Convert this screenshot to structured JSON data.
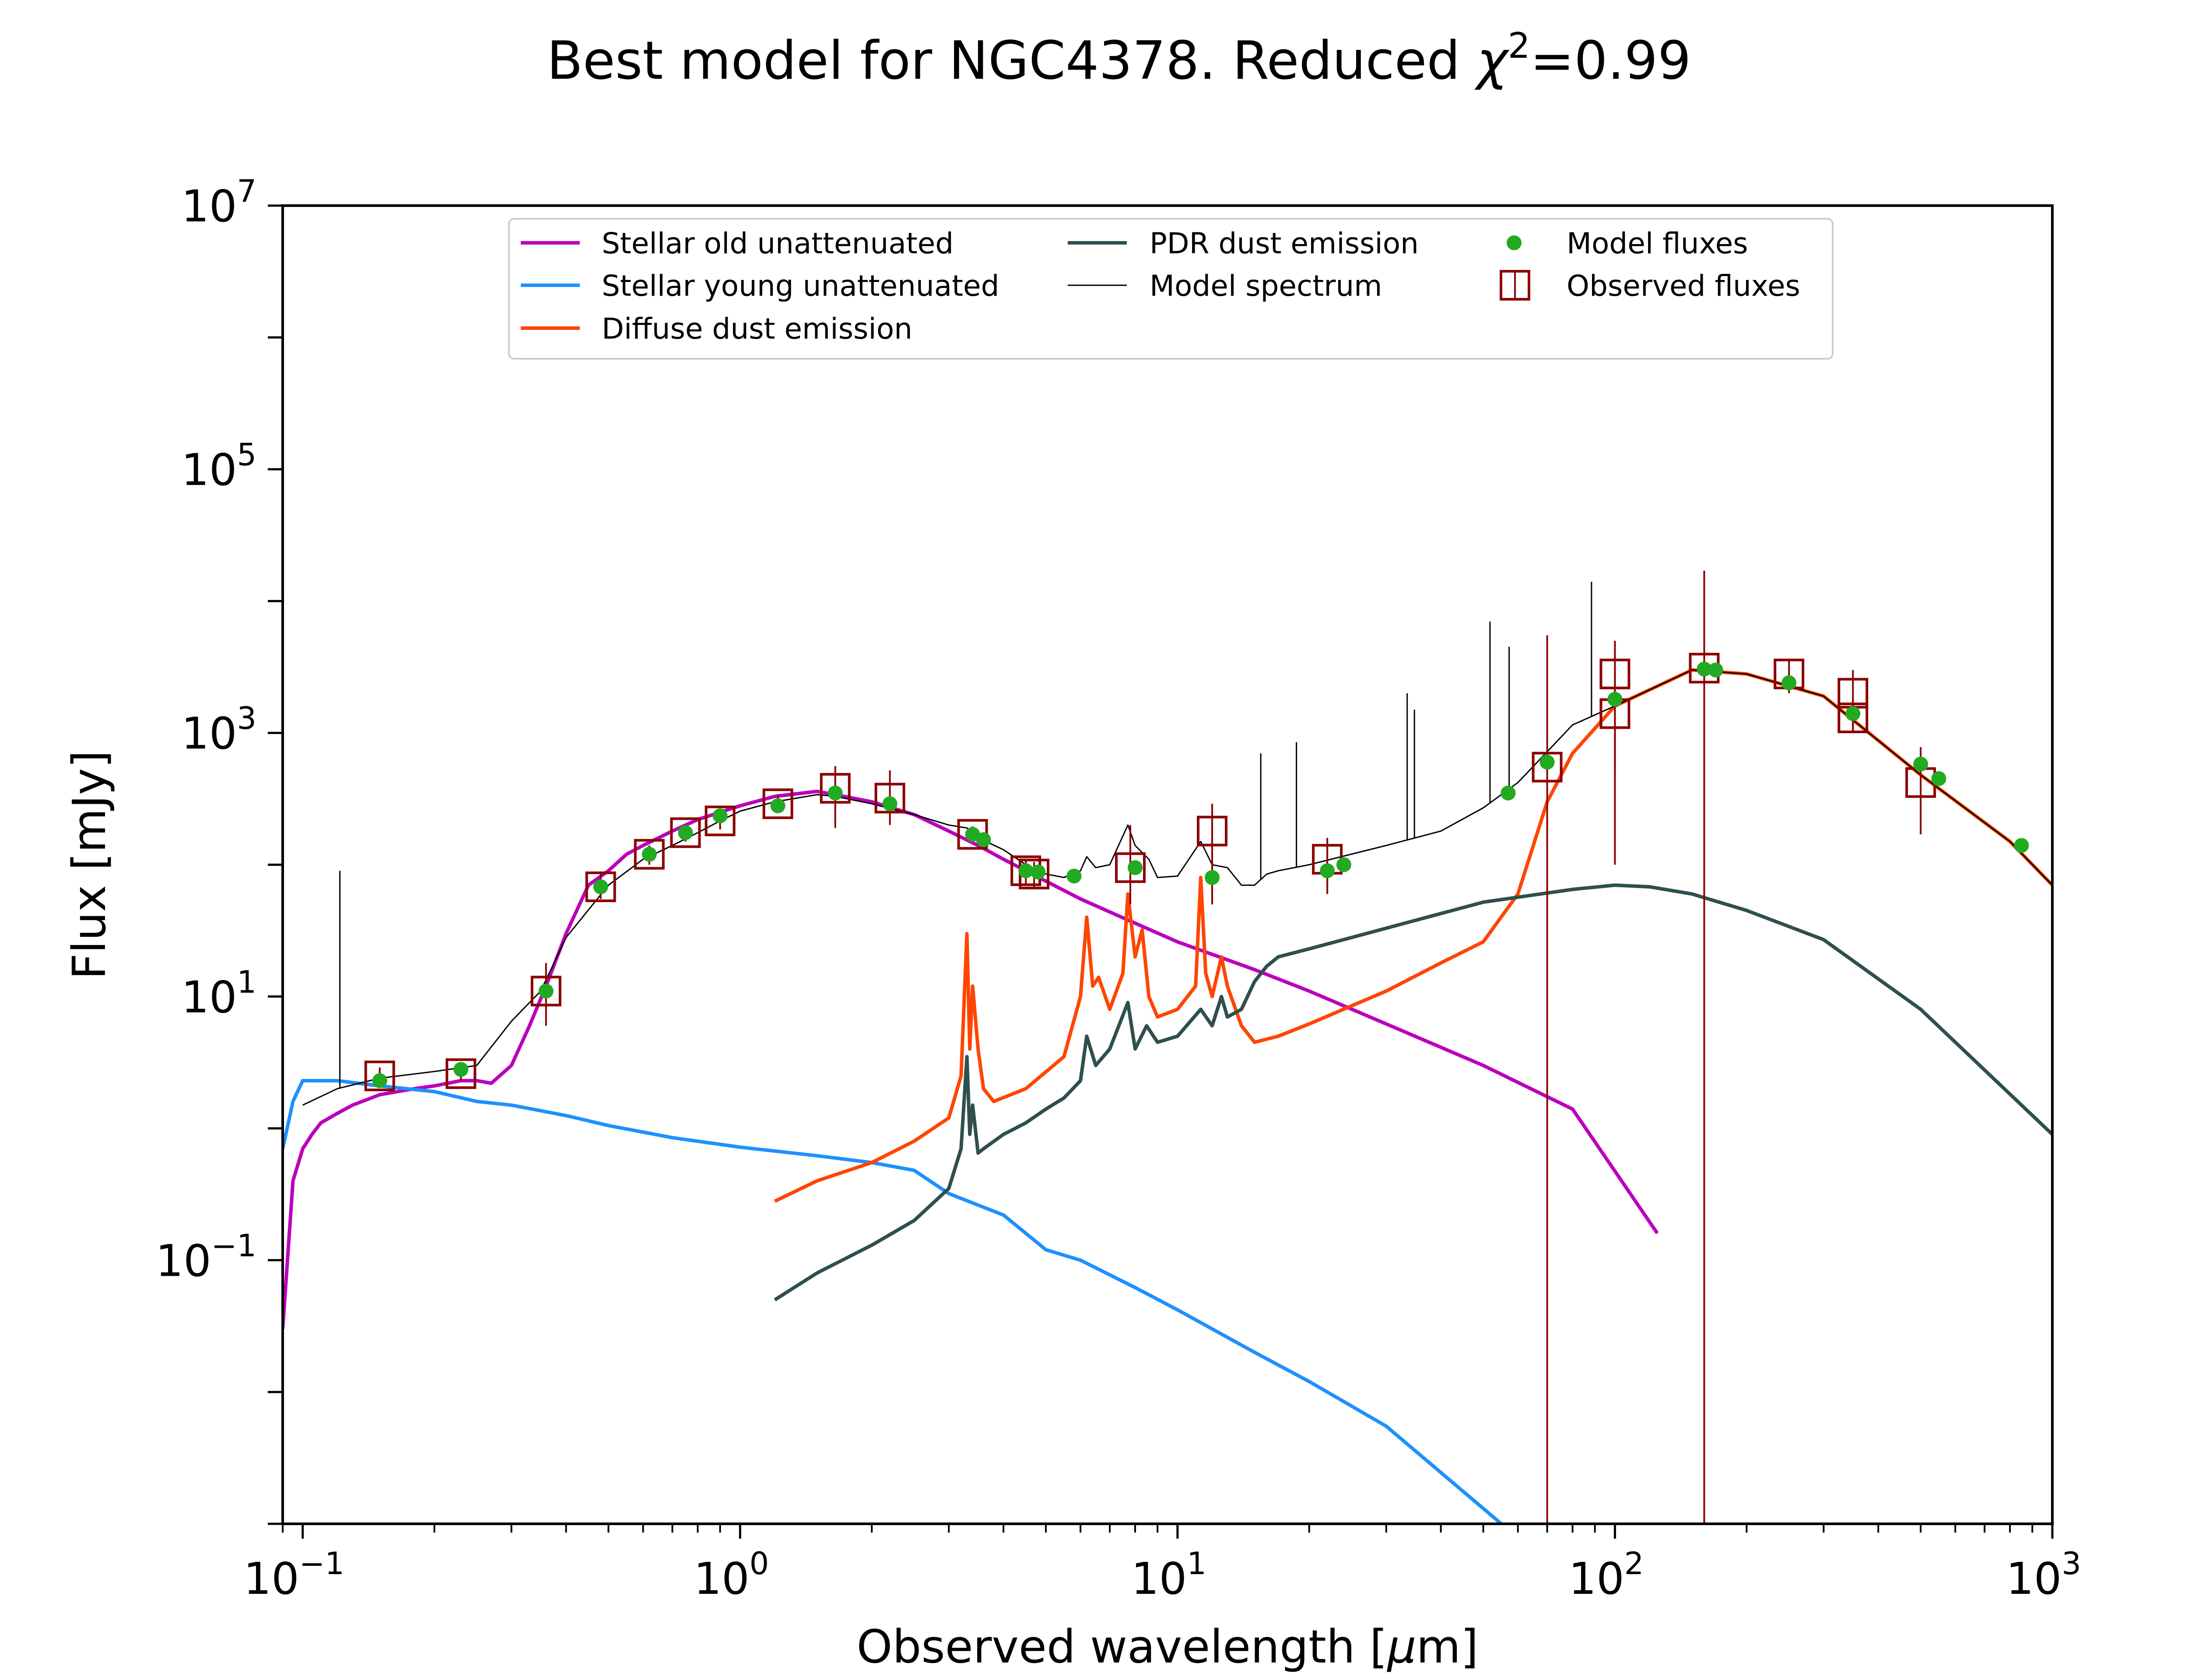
{
  "chart_data": {
    "type": "line",
    "title_main": "Best model for NGC4378. Reduced ",
    "title_chi": "χ",
    "title_exp": "2",
    "title_rest": "=0.99",
    "xlabel_main": "Observed wavelength [",
    "xlabel_mu": "μ",
    "xlabel_rest": "m]",
    "ylabel": "Flux [mJy]",
    "xscale": "log",
    "yscale": "log",
    "xlim": [
      0.09,
      1000
    ],
    "ylim": [
      0.001,
      10000000
    ],
    "x_ticks": [
      {
        "value": 0.1,
        "base": "10",
        "exp": "−1"
      },
      {
        "value": 1,
        "base": "10",
        "exp": "0"
      },
      {
        "value": 10,
        "base": "10",
        "exp": "1"
      },
      {
        "value": 100,
        "base": "10",
        "exp": "2"
      },
      {
        "value": 1000,
        "base": "10",
        "exp": "3"
      }
    ],
    "y_ticks": [
      {
        "value": 0.1,
        "base": "10",
        "exp": "−1"
      },
      {
        "value": 10,
        "base": "10",
        "exp": "1"
      },
      {
        "value": 1000,
        "base": "10",
        "exp": "3"
      },
      {
        "value": 100000,
        "base": "10",
        "exp": "5"
      },
      {
        "value": 10000000,
        "base": "10",
        "exp": "7"
      }
    ],
    "legend_position": "top-center",
    "legend": [
      {
        "label": "Stellar old unattenuated",
        "color": "#bb00bb",
        "kind": "line"
      },
      {
        "label": "Stellar young unattenuated",
        "color": "#1e90ff",
        "kind": "line"
      },
      {
        "label": "Diffuse dust emission",
        "color": "#ff4500",
        "kind": "line"
      },
      {
        "label": "PDR dust emission",
        "color": "#2f4f4f",
        "kind": "line"
      },
      {
        "label": "Model spectrum",
        "color": "#000000",
        "kind": "thin-line"
      },
      {
        "label": "Model fluxes",
        "color": "#22aa22",
        "kind": "dot"
      },
      {
        "label": "Observed fluxes",
        "color": "#8b0000",
        "kind": "square"
      }
    ],
    "series": [
      {
        "name": "Stellar old unattenuated",
        "color": "#bb00bb",
        "x": [
          0.09,
          0.095,
          0.1,
          0.105,
          0.11,
          0.12,
          0.13,
          0.15,
          0.18,
          0.2,
          0.23,
          0.25,
          0.27,
          0.3,
          0.33,
          0.36,
          0.4,
          0.45,
          0.5,
          0.55,
          0.6,
          0.7,
          0.8,
          0.9,
          1.0,
          1.2,
          1.5,
          1.65,
          2.0,
          2.5,
          3.0,
          3.5,
          4.0,
          5.0,
          6.0,
          8.0,
          10,
          15,
          20,
          30,
          50,
          80,
          125
        ],
        "y": [
          0.03,
          0.4,
          0.7,
          0.9,
          1.1,
          1.3,
          1.5,
          1.8,
          2.0,
          2.1,
          2.3,
          2.3,
          2.2,
          3.0,
          6.0,
          12,
          30,
          70,
          90,
          120,
          140,
          180,
          220,
          250,
          280,
          330,
          360,
          340,
          300,
          240,
          180,
          140,
          110,
          75,
          55,
          36,
          26,
          16,
          11,
          6.2,
          3.0,
          1.4,
          0.16
        ]
      },
      {
        "name": "Stellar young unattenuated",
        "color": "#1e90ff",
        "x": [
          0.09,
          0.095,
          0.1,
          0.12,
          0.15,
          0.2,
          0.25,
          0.3,
          0.4,
          0.5,
          0.7,
          1.0,
          1.5,
          2.0,
          2.5,
          3.0,
          4.0,
          5.0,
          6.0,
          8.0,
          10,
          15,
          20,
          30,
          55
        ],
        "y": [
          0.7,
          1.6,
          2.3,
          2.3,
          2.1,
          1.9,
          1.6,
          1.5,
          1.25,
          1.05,
          0.85,
          0.72,
          0.62,
          0.55,
          0.48,
          0.32,
          0.22,
          0.12,
          0.1,
          0.062,
          0.042,
          0.02,
          0.012,
          0.0055,
          0.001
        ]
      },
      {
        "name": "Diffuse dust emission",
        "color": "#ff4500",
        "x": [
          1.2,
          1.5,
          2.0,
          2.5,
          3.0,
          3.2,
          3.3,
          3.35,
          3.4,
          3.5,
          3.6,
          3.8,
          4.5,
          5.5,
          6.0,
          6.2,
          6.4,
          6.6,
          7.0,
          7.5,
          7.7,
          8.0,
          8.3,
          8.6,
          9.0,
          10,
          11.0,
          11.3,
          11.6,
          12.0,
          12.6,
          13.0,
          14,
          15,
          17,
          20,
          25,
          30,
          40,
          50,
          60,
          70,
          80,
          100,
          150,
          200,
          300,
          500,
          800,
          1000
        ],
        "y": [
          0.28,
          0.4,
          0.55,
          0.8,
          1.2,
          2.5,
          30,
          4,
          12,
          4,
          2,
          1.6,
          2.0,
          3.5,
          10,
          40,
          12,
          14,
          8,
          15,
          60,
          20,
          32,
          10,
          7,
          8,
          12,
          80,
          15,
          10,
          20,
          12,
          6,
          4.5,
          5.0,
          6.2,
          8.5,
          11,
          18,
          26,
          60,
          300,
          700,
          1600,
          3000,
          2800,
          1900,
          480,
          150,
          70
        ]
      },
      {
        "name": "PDR dust emission",
        "color": "#2f4f4f",
        "x": [
          1.2,
          1.5,
          2.0,
          2.5,
          3.0,
          3.2,
          3.3,
          3.35,
          3.4,
          3.5,
          3.6,
          4.0,
          4.5,
          5.0,
          5.5,
          6.0,
          6.2,
          6.5,
          7.0,
          7.7,
          8.0,
          8.5,
          9.0,
          10,
          11.3,
          12,
          12.6,
          13,
          14,
          15,
          16,
          17,
          20,
          30,
          50,
          80,
          100,
          120,
          150,
          200,
          300,
          500,
          1000
        ],
        "y": [
          0.05,
          0.08,
          0.13,
          0.2,
          0.35,
          0.7,
          3.5,
          0.9,
          1.5,
          0.65,
          0.7,
          0.9,
          1.1,
          1.4,
          1.7,
          2.3,
          5,
          3,
          4,
          9,
          4,
          6,
          4.5,
          5,
          8,
          6,
          10,
          7,
          8,
          13,
          17,
          20,
          23,
          33,
          52,
          65,
          70,
          68,
          60,
          45,
          27,
          8,
          0.9
        ]
      },
      {
        "name": "Model spectrum",
        "color": "#000000",
        "x": [
          0.1,
          0.12,
          0.15,
          0.2,
          0.25,
          0.3,
          0.35,
          0.4,
          0.5,
          0.6,
          0.7,
          0.8,
          0.9,
          1.0,
          1.2,
          1.5,
          1.65,
          2.0,
          2.5,
          3.0,
          3.3,
          3.5,
          4.0,
          4.5,
          5.0,
          5.5,
          6.0,
          6.2,
          6.5,
          7.0,
          7.7,
          8.0,
          8.6,
          9.0,
          10,
          11.3,
          12,
          13,
          14,
          15,
          16,
          17,
          20,
          30,
          40,
          50,
          60,
          70,
          80,
          100,
          150,
          200,
          300,
          500,
          800,
          1000
        ],
        "y": [
          1.5,
          2.0,
          2.4,
          2.7,
          3.0,
          6.5,
          11,
          28,
          70,
          110,
          140,
          175,
          215,
          255,
          300,
          340,
          330,
          290,
          240,
          200,
          190,
          160,
          130,
          100,
          85,
          80,
          90,
          115,
          95,
          100,
          200,
          140,
          110,
          80,
          82,
          150,
          100,
          95,
          70,
          70,
          85,
          90,
          100,
          140,
          180,
          270,
          420,
          720,
          1150,
          1600,
          3000,
          2800,
          1900,
          480,
          150,
          70
        ]
      }
    ],
    "spectral_lines": [
      {
        "x": 0.1216,
        "ytop": 90
      },
      {
        "x": 15.5,
        "ytop": 700
      },
      {
        "x": 18.7,
        "ytop": 850
      },
      {
        "x": 33.5,
        "ytop": 2000
      },
      {
        "x": 34.8,
        "ytop": 1500
      },
      {
        "x": 51.8,
        "ytop": 7000
      },
      {
        "x": 57.3,
        "ytop": 4500
      },
      {
        "x": 88.4,
        "ytop": 14000
      }
    ],
    "model_fluxes": [
      {
        "x": 0.15,
        "y": 2.3
      },
      {
        "x": 0.23,
        "y": 2.8
      },
      {
        "x": 0.36,
        "y": 11
      },
      {
        "x": 0.48,
        "y": 68
      },
      {
        "x": 0.62,
        "y": 120
      },
      {
        "x": 0.75,
        "y": 175
      },
      {
        "x": 0.9,
        "y": 235
      },
      {
        "x": 1.22,
        "y": 280
      },
      {
        "x": 1.65,
        "y": 350
      },
      {
        "x": 2.2,
        "y": 290
      },
      {
        "x": 3.4,
        "y": 170
      },
      {
        "x": 3.6,
        "y": 155
      },
      {
        "x": 4.5,
        "y": 90
      },
      {
        "x": 4.8,
        "y": 88
      },
      {
        "x": 5.8,
        "y": 82
      },
      {
        "x": 8.0,
        "y": 95
      },
      {
        "x": 12.0,
        "y": 80
      },
      {
        "x": 22.0,
        "y": 90
      },
      {
        "x": 24.0,
        "y": 100
      },
      {
        "x": 57,
        "y": 350
      },
      {
        "x": 70,
        "y": 600
      },
      {
        "x": 100,
        "y": 1800
      },
      {
        "x": 160,
        "y": 3050
      },
      {
        "x": 170,
        "y": 3000
      },
      {
        "x": 250,
        "y": 2400
      },
      {
        "x": 350,
        "y": 1400
      },
      {
        "x": 500,
        "y": 580
      },
      {
        "x": 550,
        "y": 450
      },
      {
        "x": 850,
        "y": 140
      }
    ],
    "observed_fluxes": [
      {
        "x": 0.15,
        "y": 2.5,
        "ylo": 2.2,
        "yhi": 2.9
      },
      {
        "x": 0.23,
        "y": 2.6,
        "ylo": 2.3,
        "yhi": 3.0
      },
      {
        "x": 0.36,
        "y": 11,
        "ylo": 6,
        "yhi": 18
      },
      {
        "x": 0.48,
        "y": 68,
        "ylo": 55,
        "yhi": 85
      },
      {
        "x": 0.62,
        "y": 120,
        "ylo": 100,
        "yhi": 140
      },
      {
        "x": 0.75,
        "y": 175,
        "ylo": 150,
        "yhi": 200
      },
      {
        "x": 0.9,
        "y": 215,
        "ylo": 185,
        "yhi": 245
      },
      {
        "x": 1.22,
        "y": 290,
        "ylo": 250,
        "yhi": 340
      },
      {
        "x": 1.65,
        "y": 380,
        "ylo": 190,
        "yhi": 560
      },
      {
        "x": 2.2,
        "y": 320,
        "ylo": 200,
        "yhi": 520
      },
      {
        "x": 3.4,
        "y": 170,
        "ylo": 150,
        "yhi": 195
      },
      {
        "x": 4.5,
        "y": 90,
        "ylo": 70,
        "yhi": 110
      },
      {
        "x": 4.7,
        "y": 85,
        "ylo": 65,
        "yhi": 105
      },
      {
        "x": 7.8,
        "y": 95,
        "ylo": 50,
        "yhi": 200
      },
      {
        "x": 12.0,
        "y": 180,
        "ylo": 50,
        "yhi": 290
      },
      {
        "x": 22.0,
        "y": 110,
        "ylo": 60,
        "yhi": 160
      },
      {
        "x": 70,
        "y": 550,
        "ylo": 0.001,
        "yhi": 5500
      },
      {
        "x": 100,
        "y": 2800,
        "ylo": 100,
        "yhi": 5000
      },
      {
        "x": 100,
        "y": 1400,
        "ylo": 500,
        "yhi": 3000
      },
      {
        "x": 160,
        "y": 3100,
        "ylo": 0.001,
        "yhi": 17000
      },
      {
        "x": 250,
        "y": 2800,
        "ylo": 2000,
        "yhi": 3600
      },
      {
        "x": 350,
        "y": 2000,
        "ylo": 1000,
        "yhi": 3000
      },
      {
        "x": 350,
        "y": 1300,
        "ylo": 1000,
        "yhi": 1800
      },
      {
        "x": 500,
        "y": 420,
        "ylo": 170,
        "yhi": 780
      }
    ]
  }
}
